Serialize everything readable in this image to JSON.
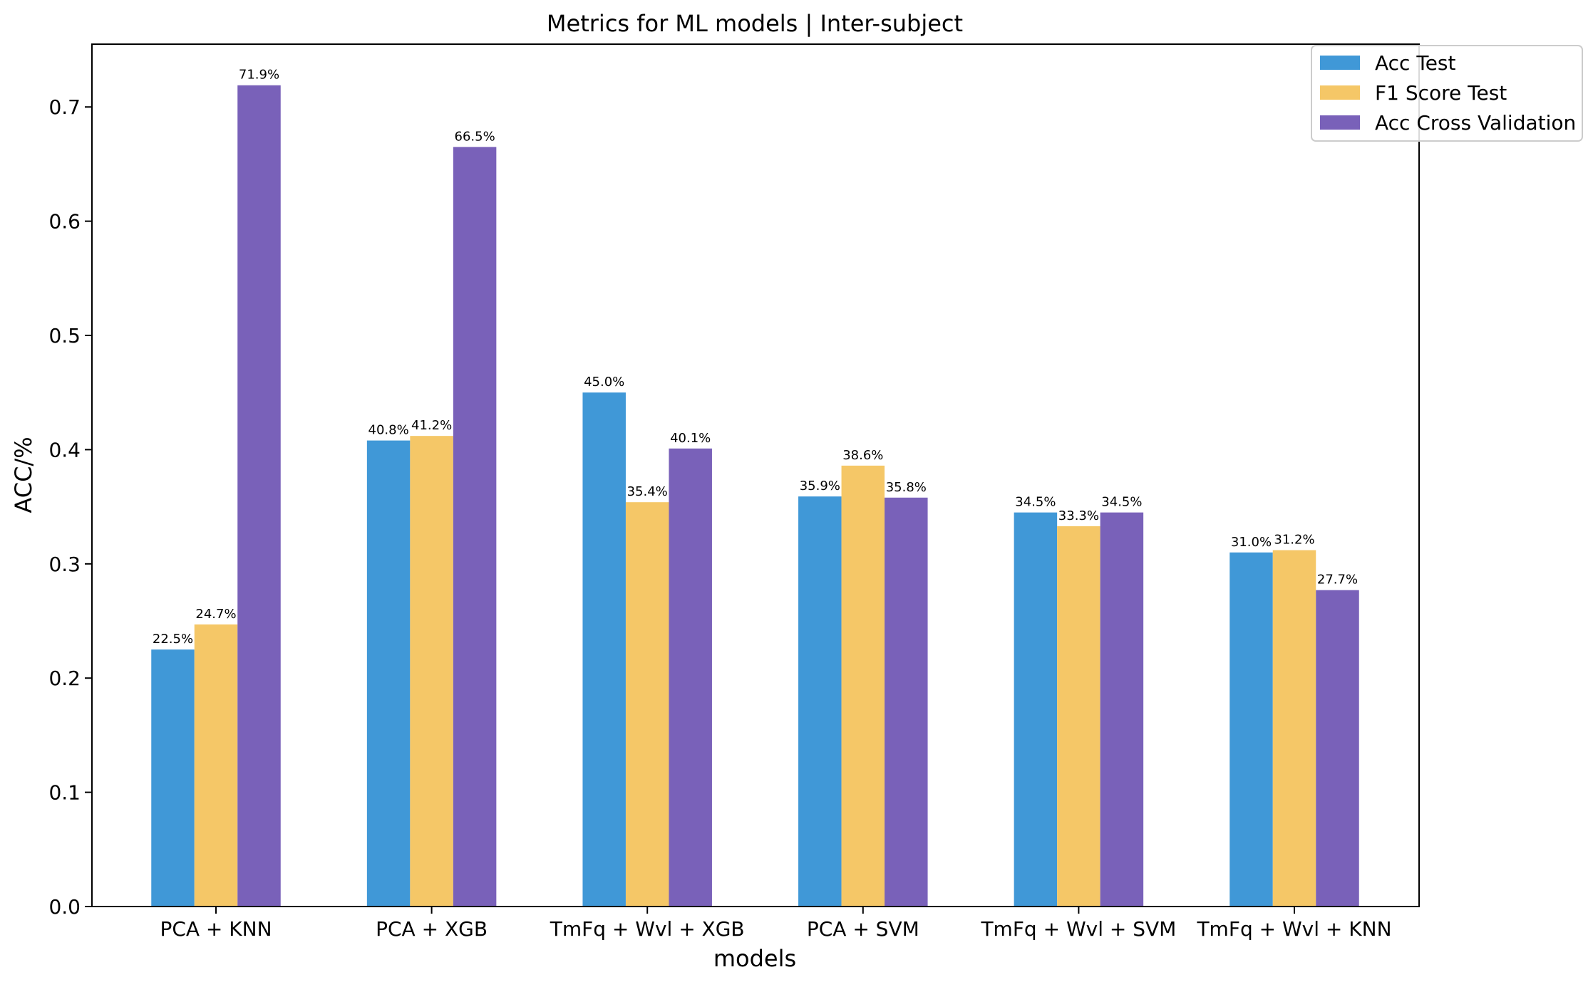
{
  "chart_data": {
    "type": "bar",
    "title": "Metrics for ML models  | Inter-subject",
    "xlabel": "models",
    "ylabel": "ACC/%",
    "ylim": [
      0,
      0.755
    ],
    "yticks": [
      "0.0",
      "0.1",
      "0.2",
      "0.3",
      "0.4",
      "0.5",
      "0.6",
      "0.7"
    ],
    "grid": false,
    "legend_position": "top-right",
    "categories": [
      "PCA + KNN",
      "PCA + XGB",
      "TmFq + Wvl + XGB",
      "PCA + SVM",
      "TmFq + Wvl + SVM",
      "TmFq + Wvl + KNN"
    ],
    "series": [
      {
        "name": "Acc Test",
        "color": "#4098d7",
        "values": [
          0.225,
          0.408,
          0.45,
          0.359,
          0.345,
          0.31
        ],
        "labels": [
          "22.5%",
          "40.8%",
          "45.0%",
          "35.9%",
          "34.5%",
          "31.0%"
        ]
      },
      {
        "name": "F1 Score Test",
        "color": "#f5c767",
        "values": [
          0.247,
          0.412,
          0.354,
          0.386,
          0.333,
          0.312
        ],
        "labels": [
          "24.7%",
          "41.2%",
          "35.4%",
          "38.6%",
          "33.3%",
          "31.2%"
        ]
      },
      {
        "name": "Acc Cross Validation",
        "color": "#7961b9",
        "values": [
          0.719,
          0.665,
          0.401,
          0.358,
          0.345,
          0.277
        ],
        "labels": [
          "71.9%",
          "66.5%",
          "40.1%",
          "35.8%",
          "34.5%",
          "27.7%"
        ]
      }
    ]
  }
}
